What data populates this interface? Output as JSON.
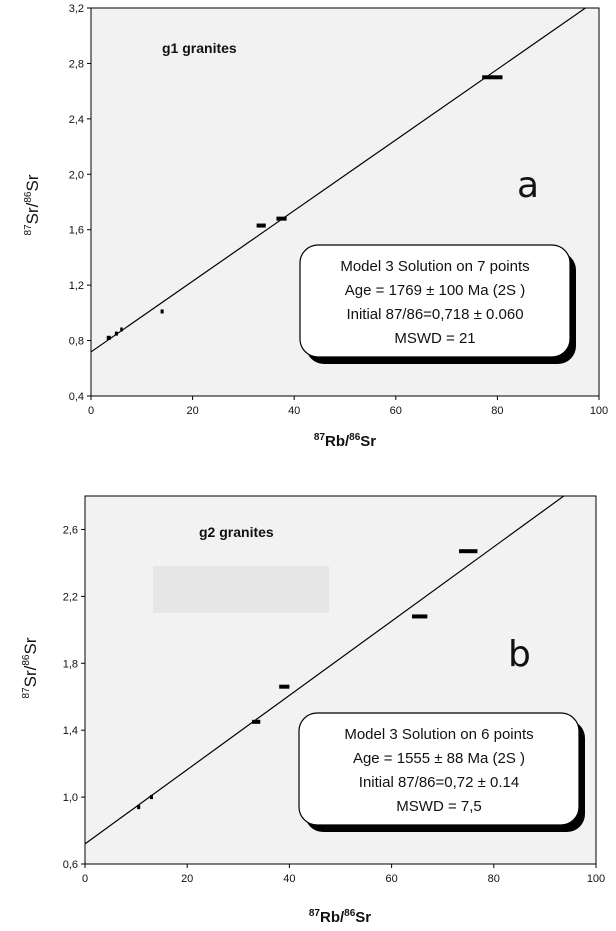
{
  "chart_data": [
    {
      "type": "scatter",
      "panel_label": "a",
      "inset_title": "g1 granites",
      "xlabel": {
        "sup1": "87",
        "base1": "Rb/",
        "sup2": "86",
        "base2": "Sr"
      },
      "ylabel": {
        "sup1": "87",
        "base1": "Sr/",
        "sup2": "86",
        "base2": "Sr"
      },
      "xlim": [
        0,
        100
      ],
      "ylim": [
        0.4,
        3.2
      ],
      "x_ticks": [
        "0",
        "20",
        "40",
        "60",
        "80",
        "100"
      ],
      "y_ticks": [
        "0,4",
        "0,8",
        "1,2",
        "1,6",
        "2,0",
        "2,4",
        "2,8",
        "3,2"
      ],
      "grid": false,
      "points": [
        {
          "x": 3.5,
          "y": 0.82,
          "w": 0.8
        },
        {
          "x": 5,
          "y": 0.85,
          "w": 0.6
        },
        {
          "x": 6,
          "y": 0.88,
          "w": 0.5
        },
        {
          "x": 14,
          "y": 1.01,
          "w": 0.6
        },
        {
          "x": 33.5,
          "y": 1.63,
          "w": 1.8
        },
        {
          "x": 37.5,
          "y": 1.68,
          "w": 2
        },
        {
          "x": 79,
          "y": 2.7,
          "w": 4
        }
      ],
      "regression": {
        "intercept": 0.718,
        "slope": 0.0255
      },
      "info_box": {
        "line1": "Model 3 Solution on 7 points",
        "line2": "Age = 1769 ± 100 Ma (2S )",
        "line3": "Initial 87/86=0,718 ± 0.060",
        "line4": "MSWD = 21"
      }
    },
    {
      "type": "scatter",
      "panel_label": "b",
      "inset_title": "g2 granites",
      "xlabel": {
        "sup1": "87",
        "base1": "Rb/",
        "sup2": "86",
        "base2": "Sr"
      },
      "ylabel": {
        "sup1": "87",
        "base1": "Sr/",
        "sup2": "86",
        "base2": "Sr"
      },
      "xlim": [
        0,
        100
      ],
      "ylim": [
        0.6,
        2.8
      ],
      "x_ticks": [
        "0",
        "20",
        "40",
        "60",
        "80",
        "100"
      ],
      "y_ticks": [
        "0,6",
        "1,0",
        "1,4",
        "1,8",
        "2,2",
        "2,6"
      ],
      "grid": false,
      "points": [
        {
          "x": 10.5,
          "y": 0.94,
          "w": 0.6
        },
        {
          "x": 13,
          "y": 1.0,
          "w": 0.6
        },
        {
          "x": 33.5,
          "y": 1.45,
          "w": 1.6
        },
        {
          "x": 39,
          "y": 1.66,
          "w": 2
        },
        {
          "x": 65.5,
          "y": 2.08,
          "w": 3
        },
        {
          "x": 75,
          "y": 2.47,
          "w": 3.6
        }
      ],
      "regression": {
        "intercept": 0.72,
        "slope": 0.0222
      },
      "info_box": {
        "line1": "Model 3 Solution on 6 points",
        "line2": "Age = 1555 ± 88 Ma (2S )",
        "line3": "Initial 87/86=0,72 ± 0.14",
        "line4": "MSWD = 7,5"
      }
    }
  ],
  "colors": {
    "plot_background": "#f2f2f2",
    "shaded_rect": "#e6e6e6",
    "line": "#000000"
  }
}
